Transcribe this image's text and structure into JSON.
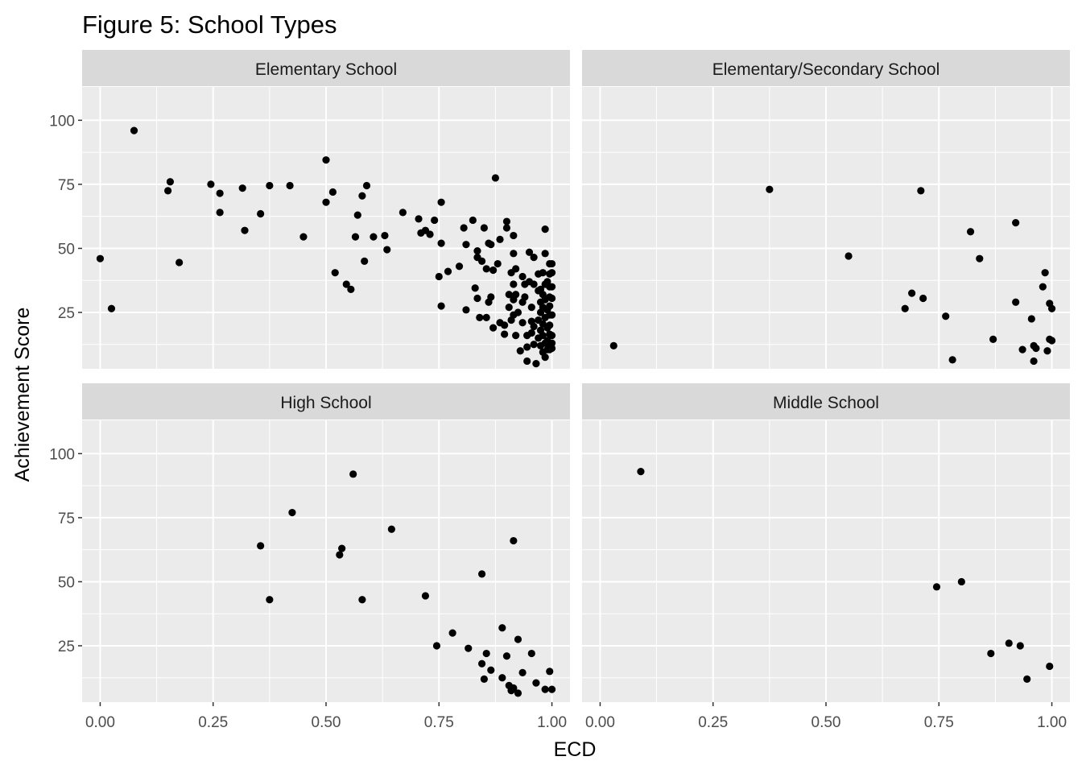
{
  "chart_data": {
    "type": "scatter",
    "title": "Figure 5: School Types",
    "xlabel": "ECD",
    "ylabel": "Achievement Score",
    "xlim": [
      -0.04,
      1.04
    ],
    "ylim": [
      3,
      113
    ],
    "x_ticks": [
      0,
      0.25,
      0.5,
      0.75,
      1.0
    ],
    "x_tick_labels": [
      "0.00",
      "0.25",
      "0.50",
      "0.75",
      "1.00"
    ],
    "y_ticks": [
      25,
      50,
      75,
      100
    ],
    "y_tick_labels": [
      "25",
      "50",
      "75",
      "100"
    ],
    "grid": true,
    "legend": "none",
    "panels": [
      {
        "name": "Elementary School",
        "points": [
          [
            0.0,
            46
          ],
          [
            0.025,
            26.5
          ],
          [
            0.075,
            96
          ],
          [
            0.15,
            72.5
          ],
          [
            0.155,
            76
          ],
          [
            0.175,
            44.5
          ],
          [
            0.245,
            75
          ],
          [
            0.265,
            71.5
          ],
          [
            0.265,
            64
          ],
          [
            0.315,
            73.5
          ],
          [
            0.32,
            57
          ],
          [
            0.355,
            63.5
          ],
          [
            0.375,
            74.5
          ],
          [
            0.42,
            74.5
          ],
          [
            0.45,
            54.5
          ],
          [
            0.5,
            84.5
          ],
          [
            0.5,
            68
          ],
          [
            0.515,
            72
          ],
          [
            0.52,
            40.5
          ],
          [
            0.545,
            36
          ],
          [
            0.555,
            34
          ],
          [
            0.565,
            54.5
          ],
          [
            0.57,
            63
          ],
          [
            0.58,
            70.5
          ],
          [
            0.585,
            45
          ],
          [
            0.59,
            74.5
          ],
          [
            0.605,
            54.5
          ],
          [
            0.63,
            55
          ],
          [
            0.635,
            49.5
          ],
          [
            0.67,
            64
          ],
          [
            0.705,
            61.5
          ],
          [
            0.71,
            56
          ],
          [
            0.72,
            57
          ],
          [
            0.73,
            55.5
          ],
          [
            0.74,
            61
          ],
          [
            0.75,
            39
          ],
          [
            0.755,
            52
          ],
          [
            0.755,
            27.5
          ],
          [
            0.755,
            68
          ],
          [
            0.77,
            41
          ],
          [
            0.795,
            43
          ],
          [
            0.805,
            58
          ],
          [
            0.81,
            51.5
          ],
          [
            0.81,
            26
          ],
          [
            0.825,
            61
          ],
          [
            0.83,
            34.5
          ],
          [
            0.835,
            49
          ],
          [
            0.835,
            46.5
          ],
          [
            0.835,
            30.5
          ],
          [
            0.84,
            23
          ],
          [
            0.845,
            45
          ],
          [
            0.85,
            58
          ],
          [
            0.855,
            42
          ],
          [
            0.855,
            23
          ],
          [
            0.86,
            52
          ],
          [
            0.86,
            29
          ],
          [
            0.865,
            51.5
          ],
          [
            0.865,
            31
          ],
          [
            0.87,
            41.5
          ],
          [
            0.87,
            19
          ],
          [
            0.875,
            77.5
          ],
          [
            0.88,
            44
          ],
          [
            0.885,
            53.5
          ],
          [
            0.885,
            21
          ],
          [
            0.895,
            20
          ],
          [
            0.895,
            16.5
          ],
          [
            0.9,
            60.5
          ],
          [
            0.9,
            58
          ],
          [
            0.905,
            32
          ],
          [
            0.905,
            27
          ],
          [
            0.91,
            40.5
          ],
          [
            0.91,
            22
          ],
          [
            0.915,
            55
          ],
          [
            0.915,
            48
          ],
          [
            0.915,
            36
          ],
          [
            0.915,
            30
          ],
          [
            0.915,
            24
          ],
          [
            0.92,
            42
          ],
          [
            0.92,
            32
          ],
          [
            0.92,
            16
          ],
          [
            0.925,
            25
          ],
          [
            0.93,
            10
          ],
          [
            0.935,
            39
          ],
          [
            0.935,
            29
          ],
          [
            0.935,
            21
          ],
          [
            0.94,
            36
          ],
          [
            0.94,
            31
          ],
          [
            0.945,
            16
          ],
          [
            0.945,
            11.5
          ],
          [
            0.945,
            6
          ],
          [
            0.95,
            48.5
          ],
          [
            0.95,
            37
          ],
          [
            0.955,
            27
          ],
          [
            0.955,
            21.5
          ],
          [
            0.955,
            17
          ],
          [
            0.96,
            46.5
          ],
          [
            0.96,
            36
          ],
          [
            0.96,
            19.5
          ],
          [
            0.96,
            12.5
          ],
          [
            0.965,
            5
          ],
          [
            0.97,
            40
          ],
          [
            0.97,
            33.5
          ],
          [
            0.97,
            22
          ],
          [
            0.97,
            15
          ],
          [
            0.975,
            34
          ],
          [
            0.975,
            29
          ],
          [
            0.975,
            25
          ],
          [
            0.975,
            18
          ],
          [
            0.975,
            12
          ],
          [
            0.98,
            40.5
          ],
          [
            0.98,
            32
          ],
          [
            0.98,
            27
          ],
          [
            0.98,
            20.5
          ],
          [
            0.98,
            16
          ],
          [
            0.98,
            9.5
          ],
          [
            0.985,
            57.5
          ],
          [
            0.985,
            48
          ],
          [
            0.985,
            36
          ],
          [
            0.985,
            30
          ],
          [
            0.985,
            23
          ],
          [
            0.985,
            13
          ],
          [
            0.985,
            7.5
          ],
          [
            0.99,
            37
          ],
          [
            0.99,
            26
          ],
          [
            0.99,
            19
          ],
          [
            0.99,
            14
          ],
          [
            0.99,
            10.5
          ],
          [
            0.995,
            44
          ],
          [
            0.995,
            40
          ],
          [
            0.995,
            35
          ],
          [
            0.995,
            31
          ],
          [
            0.995,
            27.5
          ],
          [
            0.995,
            24
          ],
          [
            0.995,
            20
          ],
          [
            0.995,
            16.5
          ],
          [
            0.995,
            12.5
          ],
          [
            0.995,
            10.5
          ],
          [
            1.0,
            44
          ],
          [
            1.0,
            40.5
          ],
          [
            1.0,
            35
          ],
          [
            1.0,
            30.5
          ],
          [
            1.0,
            24
          ],
          [
            1.0,
            16
          ],
          [
            1.0,
            13
          ],
          [
            1.0,
            11
          ]
        ]
      },
      {
        "name": "Elementary/Secondary School",
        "points": [
          [
            0.03,
            12
          ],
          [
            0.375,
            73
          ],
          [
            0.55,
            47
          ],
          [
            0.675,
            26.5
          ],
          [
            0.69,
            32.5
          ],
          [
            0.71,
            72.5
          ],
          [
            0.715,
            30.5
          ],
          [
            0.765,
            23.5
          ],
          [
            0.78,
            6.5
          ],
          [
            0.82,
            56.5
          ],
          [
            0.84,
            46
          ],
          [
            0.87,
            14.5
          ],
          [
            0.92,
            60
          ],
          [
            0.92,
            29
          ],
          [
            0.935,
            10.5
          ],
          [
            0.955,
            22.5
          ],
          [
            0.96,
            12
          ],
          [
            0.96,
            6
          ],
          [
            0.965,
            11
          ],
          [
            0.98,
            35
          ],
          [
            0.985,
            40.5
          ],
          [
            0.99,
            10
          ],
          [
            0.995,
            14.5
          ],
          [
            0.995,
            28.5
          ],
          [
            1.0,
            26.5
          ],
          [
            1.0,
            14
          ]
        ]
      },
      {
        "name": "High School",
        "points": [
          [
            0.355,
            64
          ],
          [
            0.375,
            43
          ],
          [
            0.425,
            77
          ],
          [
            0.53,
            60.5
          ],
          [
            0.535,
            63
          ],
          [
            0.56,
            92
          ],
          [
            0.58,
            43
          ],
          [
            0.645,
            70.5
          ],
          [
            0.72,
            44.5
          ],
          [
            0.745,
            25
          ],
          [
            0.78,
            30
          ],
          [
            0.815,
            24
          ],
          [
            0.845,
            53
          ],
          [
            0.845,
            18
          ],
          [
            0.85,
            12
          ],
          [
            0.855,
            22
          ],
          [
            0.865,
            15.5
          ],
          [
            0.89,
            32
          ],
          [
            0.89,
            12.5
          ],
          [
            0.9,
            21
          ],
          [
            0.905,
            9.5
          ],
          [
            0.91,
            7.5
          ],
          [
            0.915,
            66
          ],
          [
            0.915,
            8.5
          ],
          [
            0.925,
            6.5
          ],
          [
            0.925,
            27.5
          ],
          [
            0.935,
            14.5
          ],
          [
            0.955,
            22
          ],
          [
            0.965,
            10.5
          ],
          [
            0.985,
            8
          ],
          [
            0.995,
            15
          ],
          [
            1.0,
            8
          ]
        ]
      },
      {
        "name": "Middle School",
        "points": [
          [
            0.09,
            93
          ],
          [
            0.745,
            48
          ],
          [
            0.8,
            50
          ],
          [
            0.865,
            22
          ],
          [
            0.905,
            26
          ],
          [
            0.93,
            25
          ],
          [
            0.945,
            12
          ],
          [
            0.995,
            17
          ]
        ]
      }
    ]
  }
}
